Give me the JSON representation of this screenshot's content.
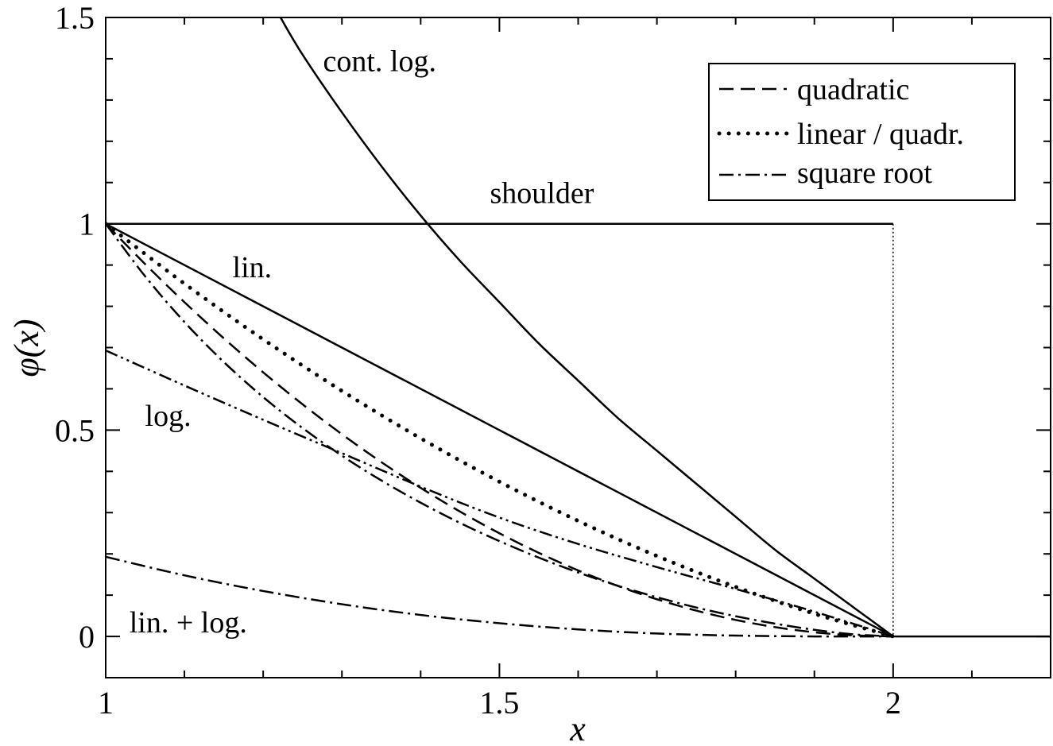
{
  "chart_data": {
    "type": "line",
    "xlabel": "x",
    "ylabel": "φ(x)",
    "xlim": [
      1,
      2.2
    ],
    "ylim": [
      -0.1,
      1.5
    ],
    "x_ticks": [
      1,
      1.5,
      2
    ],
    "x_tick_labels": [
      "1",
      "1.5",
      "2"
    ],
    "y_ticks": [
      0,
      0.5,
      1,
      1.5
    ],
    "y_tick_labels": [
      "0",
      "0.5",
      "1",
      "1.5"
    ],
    "x_minor_step": 0.1,
    "y_minor_step": 0.1,
    "grid": false,
    "legend": {
      "position": "top-right",
      "entries": [
        {
          "label": "quadratic",
          "style": "dashed"
        },
        {
          "label": "linear / quadr.",
          "style": "dotted"
        },
        {
          "label": "square root",
          "style": "dashdot"
        }
      ]
    },
    "series": [
      {
        "label": "cont. log.",
        "style": "solid",
        "x": [
          1.222,
          1.25,
          1.3,
          1.35,
          1.4,
          1.45,
          1.5,
          1.55,
          1.6,
          1.65,
          1.7,
          1.75,
          1.8,
          1.85,
          1.9,
          1.95,
          2.0
        ],
        "y": [
          1.5,
          1.41,
          1.27,
          1.14,
          1.02,
          0.91,
          0.81,
          0.71,
          0.62,
          0.53,
          0.45,
          0.37,
          0.29,
          0.21,
          0.14,
          0.07,
          0.0
        ]
      },
      {
        "label": "shoulder",
        "style": "solid",
        "x": [
          1,
          2
        ],
        "y": [
          1,
          1
        ]
      },
      {
        "label": "",
        "style": "thin-dotted",
        "x": [
          2,
          2
        ],
        "y": [
          1,
          0
        ]
      },
      {
        "label": "",
        "style": "solid",
        "x": [
          2,
          2.2
        ],
        "y": [
          0,
          0
        ]
      },
      {
        "label": "lin.",
        "style": "solid",
        "x": [
          1,
          2
        ],
        "y": [
          1,
          0
        ]
      },
      {
        "label": "quadratic",
        "style": "dashed",
        "x": [
          1,
          1.05,
          1.1,
          1.15,
          1.2,
          1.25,
          1.3,
          1.35,
          1.4,
          1.45,
          1.5,
          1.55,
          1.6,
          1.65,
          1.7,
          1.75,
          1.8,
          1.85,
          1.9,
          1.95,
          2.0
        ],
        "y": [
          1,
          0.9025,
          0.81,
          0.7225,
          0.64,
          0.5625,
          0.49,
          0.4225,
          0.36,
          0.3025,
          0.25,
          0.2025,
          0.16,
          0.1225,
          0.09,
          0.0625,
          0.04,
          0.0225,
          0.01,
          0.0025,
          0.0
        ]
      },
      {
        "label": "linear / quadr.",
        "style": "dotted",
        "x": [
          1,
          1.1,
          1.2,
          1.3,
          1.4,
          1.5,
          1.6,
          1.7,
          1.8,
          1.9,
          2.0
        ],
        "y": [
          1,
          0.855,
          0.72,
          0.595,
          0.48,
          0.375,
          0.28,
          0.195,
          0.12,
          0.055,
          0.0
        ]
      },
      {
        "label": "square root",
        "style": "dashdot",
        "x": [
          1,
          1.05,
          1.1,
          1.15,
          1.2,
          1.25,
          1.3,
          1.35,
          1.4,
          1.45,
          1.5,
          1.55,
          1.6,
          1.65,
          1.7,
          1.75,
          1.8,
          1.85,
          1.9,
          1.95,
          2.0
        ],
        "y": [
          1,
          0.873,
          0.762,
          0.665,
          0.58,
          0.505,
          0.438,
          0.378,
          0.324,
          0.275,
          0.231,
          0.191,
          0.155,
          0.123,
          0.095,
          0.07,
          0.049,
          0.031,
          0.016,
          0.005,
          0.0
        ]
      },
      {
        "label": "log.",
        "style": "dashdotdot",
        "x": [
          1,
          1.1,
          1.2,
          1.3,
          1.4,
          1.5,
          1.6,
          1.7,
          1.8,
          1.9,
          2.0
        ],
        "y": [
          0.693,
          0.608,
          0.525,
          0.444,
          0.363,
          0.288,
          0.224,
          0.168,
          0.115,
          0.06,
          0.0
        ]
      },
      {
        "label": "lin. + log.",
        "style": "dashdot",
        "x": [
          1,
          1.1,
          1.2,
          1.3,
          1.4,
          1.5,
          1.6,
          1.7,
          1.8,
          1.9,
          2.0
        ],
        "y": [
          0.193,
          0.148,
          0.11,
          0.078,
          0.052,
          0.032,
          0.017,
          0.007,
          0.002,
          0.0,
          0.0
        ]
      }
    ],
    "annotations": [
      {
        "text": "cont. log.",
        "x": 1.276,
        "y": 1.37
      },
      {
        "text": "shoulder",
        "x": 1.488,
        "y": 1.05
      },
      {
        "text": "lin.",
        "x": 1.161,
        "y": 0.87
      },
      {
        "text": "log.",
        "x": 1.05,
        "y": 0.51
      },
      {
        "text": "lin. + log.",
        "x": 1.03,
        "y": 0.01
      }
    ]
  }
}
